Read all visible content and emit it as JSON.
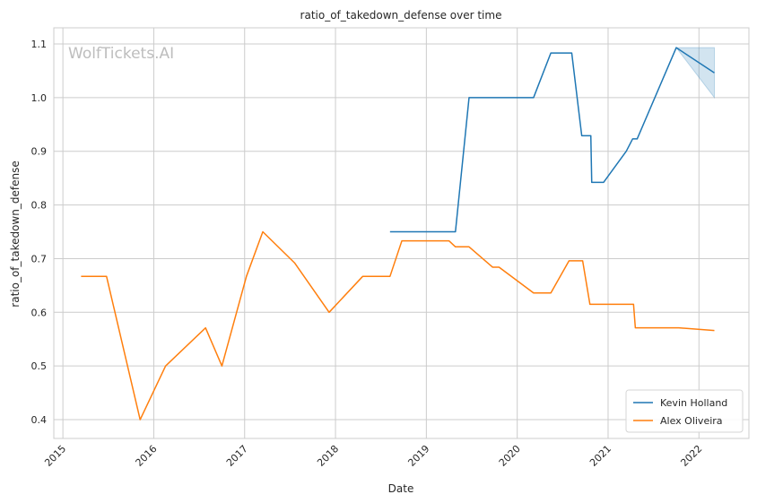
{
  "chart_data": {
    "type": "line",
    "title": "ratio_of_takedown_defense over time",
    "xlabel": "Date",
    "ylabel": "ratio_of_takedown_defense",
    "watermark": "WolfTickets.AI",
    "xlim": [
      2014.9,
      2022.55
    ],
    "ylim": [
      0.365,
      1.13
    ],
    "x_ticks": [
      2015,
      2016,
      2017,
      2018,
      2019,
      2020,
      2021,
      2022
    ],
    "y_ticks": [
      0.4,
      0.5,
      0.6,
      0.7,
      0.8,
      0.9,
      1.0,
      1.1
    ],
    "y_tick_labels": [
      "0.4",
      "0.5",
      "0.6",
      "0.7",
      "0.8",
      "0.9",
      "1.0",
      "1.1"
    ],
    "grid": true,
    "legend_position": "lower-right",
    "series": [
      {
        "name": "Kevin Holland",
        "color": "#1f77b4",
        "x": [
          2018.6,
          2019.32,
          2019.47,
          2020.18,
          2020.37,
          2020.6,
          2020.71,
          2020.81,
          2020.82,
          2020.95,
          2021.2,
          2021.27,
          2021.32,
          2021.75,
          2022.17
        ],
        "y": [
          0.75,
          0.75,
          1.0,
          1.0,
          1.083,
          1.083,
          0.929,
          0.929,
          0.842,
          0.842,
          0.9,
          0.923,
          0.923,
          1.093,
          1.046
        ],
        "band": {
          "x": [
            2021.75,
            2022.17
          ],
          "upper": [
            1.093,
            1.093
          ],
          "lower": [
            1.093,
            1.0
          ]
        }
      },
      {
        "name": "Alex Oliveira",
        "color": "#ff7f0e",
        "x": [
          2015.2,
          2015.48,
          2015.85,
          2016.13,
          2016.57,
          2016.75,
          2017.02,
          2017.2,
          2017.55,
          2017.93,
          2018.3,
          2018.6,
          2018.73,
          2019.25,
          2019.32,
          2019.47,
          2019.73,
          2019.8,
          2020.18,
          2020.37,
          2020.57,
          2020.72,
          2020.8,
          2021.28,
          2021.3,
          2021.78,
          2022.17
        ],
        "y": [
          0.667,
          0.667,
          0.4,
          0.5,
          0.571,
          0.5,
          0.667,
          0.75,
          0.692,
          0.6,
          0.667,
          0.667,
          0.733,
          0.733,
          0.722,
          0.722,
          0.684,
          0.684,
          0.636,
          0.636,
          0.696,
          0.696,
          0.615,
          0.615,
          0.571,
          0.571,
          0.566
        ]
      }
    ]
  }
}
